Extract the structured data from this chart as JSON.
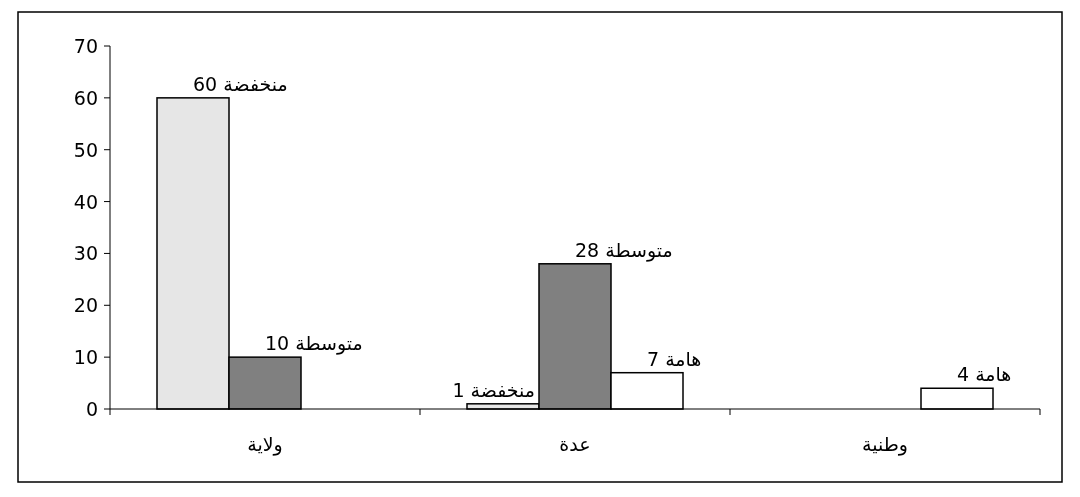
{
  "chart_data": {
    "type": "bar",
    "categories": [
      "ولاية",
      "عدة",
      "وطنية"
    ],
    "series": [
      {
        "name": "منخفضة",
        "color": "#e6e6e6",
        "values": [
          60,
          1,
          null
        ]
      },
      {
        "name": "متوسطة",
        "color": "#808080",
        "values": [
          10,
          28,
          null
        ]
      },
      {
        "name": "هامة",
        "color": "#ffffff",
        "values": [
          null,
          7,
          4
        ]
      }
    ],
    "data_labels": true,
    "ylim": [
      0,
      70
    ],
    "yticks": [
      0,
      10,
      20,
      30,
      40,
      50,
      60,
      70
    ],
    "grid": false,
    "legend": false
  }
}
